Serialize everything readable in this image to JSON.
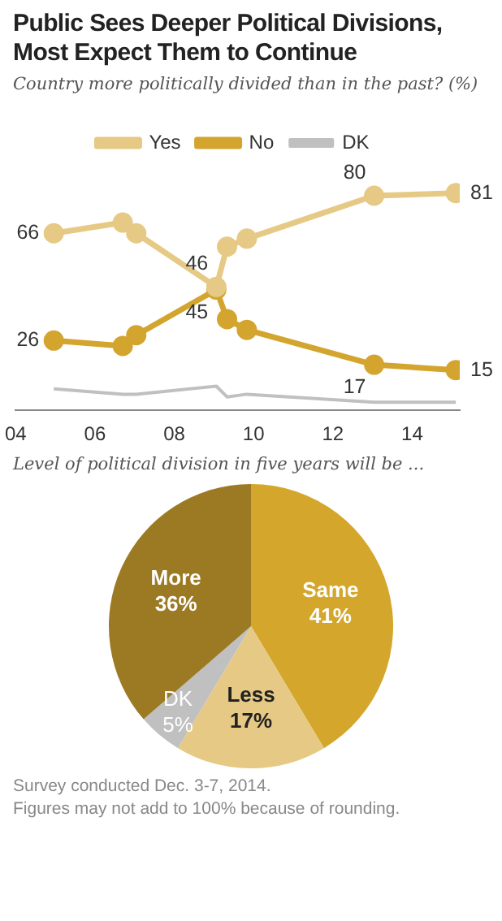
{
  "chart_data": [
    {
      "type": "line",
      "title": "Public Sees Deeper Political Divisions, Most Expect Them to Continue",
      "subtitle": "Country more politically divided than in the past? (%)",
      "x": [
        4.96,
        6.7,
        7.04,
        9.06,
        9.33,
        9.83,
        13.04,
        15.1
      ],
      "xlim": [
        4,
        15.2
      ],
      "xticks": [
        {
          "value": 4,
          "label": "04"
        },
        {
          "value": 6,
          "label": "06"
        },
        {
          "value": 8,
          "label": "08"
        },
        {
          "value": 10,
          "label": "10"
        },
        {
          "value": 12,
          "label": "12"
        },
        {
          "value": 14,
          "label": "14"
        }
      ],
      "tick_labels": "x",
      "grid": false,
      "legend": "top",
      "series": [
        {
          "name": "Yes",
          "color": "#e6c985",
          "marker": "circle",
          "values": [
            66,
            70,
            66,
            46,
            61,
            64,
            80,
            81
          ],
          "value_labels": [
            "66",
            null,
            null,
            "46",
            null,
            null,
            "80",
            "81"
          ]
        },
        {
          "name": "No",
          "color": "#d3a52e",
          "marker": "circle",
          "values": [
            26,
            24,
            28,
            45,
            34,
            30,
            17,
            15
          ],
          "value_labels": [
            "26",
            null,
            null,
            "45",
            null,
            null,
            "17",
            "15"
          ]
        },
        {
          "name": "DK",
          "color": "#c0c0c0",
          "marker": "none",
          "values": [
            8,
            6,
            6,
            9,
            5,
            6,
            3,
            3
          ]
        }
      ]
    },
    {
      "type": "pie",
      "subtitle": "Level of political division in five years will be ...",
      "categories": [
        "Same",
        "Less",
        "DK",
        "More"
      ],
      "values": [
        41,
        17,
        5,
        36
      ],
      "value_labels": [
        "41%",
        "17%",
        "5%",
        "36%"
      ],
      "colors": [
        "#d4a72c",
        "#e6c985",
        "#c0c0c0",
        "#9c7a23"
      ],
      "legend": false,
      "annotations": [
        "Survey conducted Dec. 3-7, 2014.",
        "Figures may not add to 100% because of rounding."
      ]
    }
  ]
}
